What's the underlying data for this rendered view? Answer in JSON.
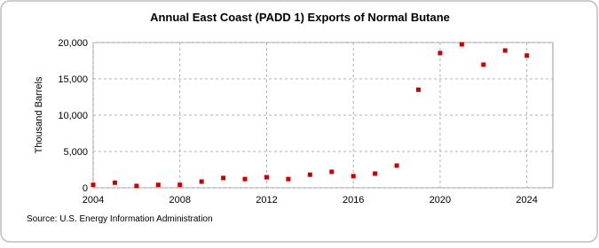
{
  "chart_data": {
    "type": "scatter",
    "title": "Annual East Coast (PADD 1) Exports of Normal Butane",
    "y_label": "Thousand Barrels",
    "source": "Source: U.S. Energy Information Administration",
    "x": [
      2004,
      2005,
      2006,
      2007,
      2008,
      2009,
      2010,
      2011,
      2012,
      2013,
      2014,
      2015,
      2016,
      2017,
      2018,
      2019,
      2020,
      2021,
      2022,
      2023,
      2024
    ],
    "series": [
      {
        "name": "East Coast (PADD 1) Exports of Normal Butane",
        "color": "#cc0000",
        "values": [
          400,
          700,
          250,
          400,
          400,
          850,
          1350,
          1200,
          1450,
          1200,
          1800,
          2200,
          1600,
          1950,
          3050,
          13500,
          18550,
          19750,
          16950,
          18900,
          18200
        ]
      }
    ],
    "xlim": [
      2004,
      2025.2
    ],
    "xticks": [
      2004,
      2008,
      2012,
      2016,
      2020,
      2024
    ],
    "ylim": [
      0,
      20000
    ],
    "yticks": [
      0,
      {
        "value": 5000,
        "label": "5,000"
      },
      {
        "value": 10000,
        "label": "10,000"
      },
      {
        "value": 15000,
        "label": "15,000"
      },
      {
        "value": 20000,
        "label": "20,000"
      }
    ],
    "grid": true
  }
}
